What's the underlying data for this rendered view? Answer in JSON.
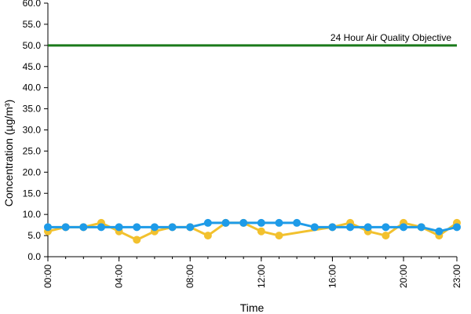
{
  "chart_data": {
    "type": "line",
    "xlabel": "Time",
    "ylabel": "Concentration (µg/m³)",
    "ylim": [
      0,
      60
    ],
    "y_ticks": [
      "0.0",
      "5.0",
      "10.0",
      "15.0",
      "20.0",
      "25.0",
      "30.0",
      "35.0",
      "40.0",
      "45.0",
      "50.0",
      "55.0",
      "60.0"
    ],
    "x_ticks": [
      "00:00",
      "04:00",
      "08:00",
      "12:00",
      "16:00",
      "20:00",
      "23:00"
    ],
    "x_tick_hours": [
      0,
      4,
      8,
      12,
      16,
      20,
      23
    ],
    "x_hours": [
      0,
      1,
      2,
      3,
      4,
      5,
      6,
      7,
      8,
      9,
      10,
      11,
      12,
      13,
      14,
      15,
      16,
      17,
      18,
      19,
      20,
      21,
      22,
      23
    ],
    "grid": false,
    "reference_line": {
      "label": "24 Hour Air Quality Objective",
      "value": 50,
      "color": "#1a7a1a"
    },
    "series": [
      {
        "color": "#f2c12e",
        "values": [
          6,
          7,
          7,
          8,
          6,
          4,
          6,
          7,
          7,
          5,
          8,
          8,
          6,
          5,
          null,
          null,
          7,
          8,
          6,
          5,
          8,
          7,
          5,
          8
        ]
      },
      {
        "color": "#1e9be8",
        "values": [
          7,
          7,
          7,
          7,
          7,
          7,
          7,
          7,
          7,
          8,
          8,
          8,
          8,
          8,
          8,
          7,
          7,
          7,
          7,
          7,
          7,
          7,
          6,
          7
        ]
      }
    ]
  }
}
